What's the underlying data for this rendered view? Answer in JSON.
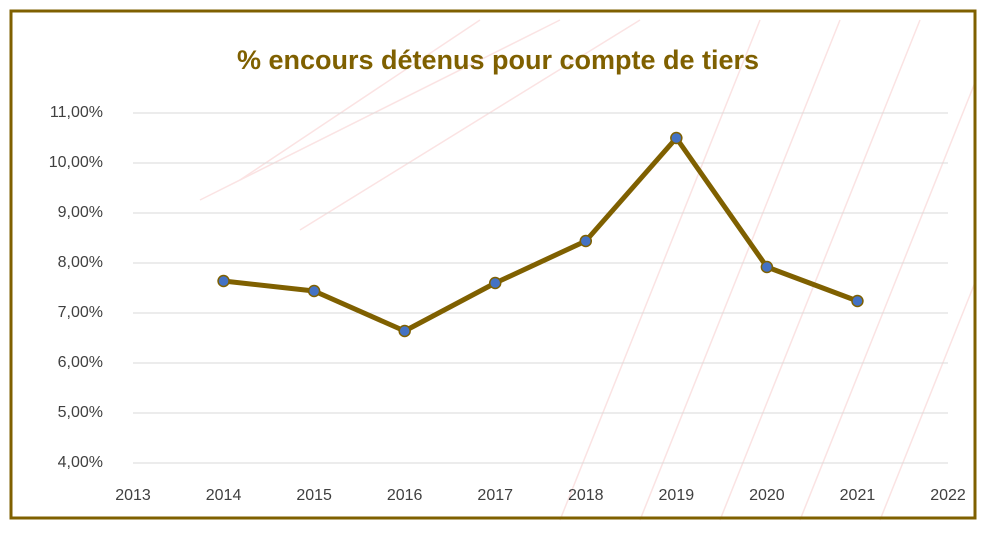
{
  "chart_data": {
    "type": "line",
    "title": "% encours détenus pour compte de tiers",
    "x": [
      2014,
      2015,
      2016,
      2017,
      2018,
      2019,
      2020,
      2021
    ],
    "values": [
      7.64,
      7.44,
      6.64,
      7.6,
      8.44,
      10.5,
      7.92,
      7.24
    ],
    "color": "#7f6000",
    "marker_color": "#4472c4",
    "xlim": [
      2013,
      2022
    ],
    "xticks": [
      2013,
      2014,
      2015,
      2016,
      2017,
      2018,
      2019,
      2020,
      2021,
      2022
    ],
    "ylim": [
      4,
      11
    ],
    "yticks": [
      {
        "value": 4,
        "label": "4,00%"
      },
      {
        "value": 5,
        "label": "5,00%"
      },
      {
        "value": 6,
        "label": "6,00%"
      },
      {
        "value": 7,
        "label": "7,00%"
      },
      {
        "value": 8,
        "label": "8,00%"
      },
      {
        "value": 9,
        "label": "9,00%"
      },
      {
        "value": 10,
        "label": "10,00%"
      },
      {
        "value": 11,
        "label": "11,00%"
      }
    ],
    "grid": true
  }
}
